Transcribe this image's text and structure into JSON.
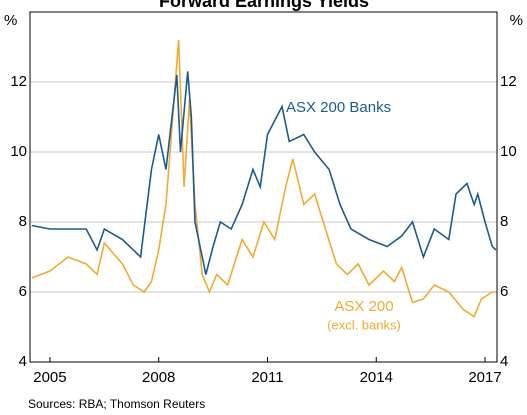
{
  "chart_data": {
    "type": "line",
    "title": "Forward Earnings Yields",
    "y_unit": "%",
    "source": "Sources:   RBA; Thomson Reuters",
    "note": "(excl. banks)",
    "xlim": [
      2004.45,
      2017.33
    ],
    "xticks": [
      2005,
      2008,
      2011,
      2014,
      2017
    ],
    "ylim": [
      4,
      14
    ],
    "yticks": [
      4,
      6,
      8,
      10,
      12
    ],
    "grid": true,
    "series": [
      {
        "name": "ASX 200 Banks",
        "color": "#1c5b91",
        "x": [
          2004.5,
          2005.0,
          2005.5,
          2006.0,
          2006.3,
          2006.5,
          2007.0,
          2007.5,
          2007.8,
          2008.0,
          2008.2,
          2008.5,
          2008.6,
          2008.8,
          2008.9,
          2009.0,
          2009.1,
          2009.3,
          2009.5,
          2009.7,
          2010.0,
          2010.3,
          2010.6,
          2010.8,
          2011.0,
          2011.4,
          2011.6,
          2012.0,
          2012.3,
          2012.7,
          2013.0,
          2013.3,
          2013.8,
          2014.3,
          2014.7,
          2015.0,
          2015.3,
          2015.6,
          2016.0,
          2016.2,
          2016.5,
          2016.7,
          2016.8,
          2017.0,
          2017.2,
          2017.3
        ],
        "values": [
          7.9,
          7.8,
          7.8,
          7.8,
          7.2,
          7.8,
          7.5,
          7.0,
          9.5,
          10.5,
          9.5,
          12.2,
          10.0,
          12.3,
          11.0,
          8.0,
          7.5,
          6.5,
          7.3,
          8.0,
          7.8,
          8.5,
          9.5,
          9.0,
          10.5,
          11.3,
          10.3,
          10.5,
          10.0,
          9.5,
          8.5,
          7.8,
          7.5,
          7.3,
          7.6,
          8.0,
          7.0,
          7.8,
          7.5,
          8.8,
          9.1,
          8.5,
          8.8,
          8.0,
          7.3,
          7.2
        ]
      },
      {
        "name": "ASX 200",
        "color": "#f3aa33",
        "x": [
          2004.5,
          2005.0,
          2005.5,
          2006.0,
          2006.3,
          2006.5,
          2007.0,
          2007.3,
          2007.6,
          2007.8,
          2008.0,
          2008.2,
          2008.55,
          2008.7,
          2008.85,
          2009.0,
          2009.2,
          2009.4,
          2009.6,
          2009.9,
          2010.3,
          2010.6,
          2010.9,
          2011.2,
          2011.5,
          2011.7,
          2012.0,
          2012.3,
          2012.6,
          2012.9,
          2013.2,
          2013.5,
          2013.8,
          2014.2,
          2014.5,
          2014.7,
          2015.0,
          2015.3,
          2015.6,
          2016.0,
          2016.4,
          2016.7,
          2016.9,
          2017.2,
          2017.3
        ],
        "values": [
          6.4,
          6.6,
          7.0,
          6.8,
          6.5,
          7.4,
          6.8,
          6.2,
          6.0,
          6.3,
          7.2,
          8.5,
          13.2,
          9.0,
          11.5,
          8.5,
          6.5,
          6.0,
          6.5,
          6.2,
          7.5,
          7.0,
          8.0,
          7.5,
          9.0,
          9.8,
          8.5,
          8.8,
          7.8,
          6.8,
          6.5,
          6.8,
          6.2,
          6.6,
          6.3,
          6.7,
          5.7,
          5.8,
          6.2,
          6.0,
          5.5,
          5.3,
          5.8,
          6.0,
          6.0
        ]
      }
    ]
  }
}
